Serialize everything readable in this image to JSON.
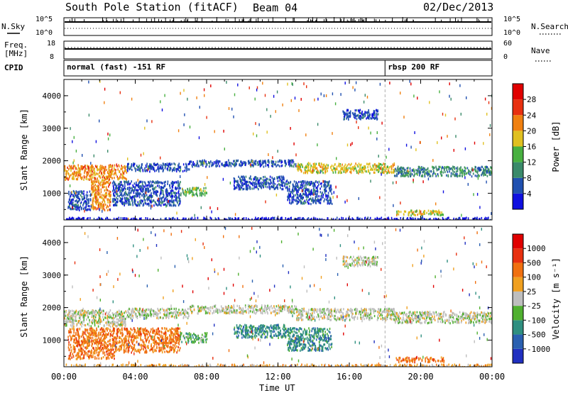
{
  "header": {
    "station": "South Pole Station (fitACF)",
    "beam": "Beam 04",
    "date": "02/Dec/2013"
  },
  "sky_panel": {
    "left_label": "N.Sky",
    "right_label": "N.Search",
    "left_ticks": [
      "10^5",
      "10^0"
    ],
    "right_ticks": [
      "10^5",
      "10^0"
    ]
  },
  "freq_panel": {
    "left_label_line1": "Freq.",
    "left_label_line2": "[MHz]",
    "right_label": "Nave",
    "left_ticks": [
      "18",
      "8"
    ],
    "right_ticks": [
      "60",
      "0"
    ]
  },
  "cpid_panel": {
    "label": "CPID",
    "modes": [
      {
        "name": "normal (fast) -151 RF",
        "start_hour": 0
      },
      {
        "name": "rbsp 200 RF",
        "start_hour": 18
      }
    ]
  },
  "time_axis": {
    "label": "Time UT",
    "ticks": [
      "00:00",
      "04:00",
      "08:00",
      "12:00",
      "16:00",
      "20:00",
      "00:00"
    ]
  },
  "chart_data": [
    {
      "type": "heatmap",
      "name": "Power",
      "ylabel": "Slant Range [km]",
      "xlabel": "",
      "xlim_hours": [
        0,
        24
      ],
      "ylim_km": [
        180,
        4500
      ],
      "yticks": [
        "1000",
        "2000",
        "3000",
        "4000"
      ],
      "colorbar": {
        "label": "Power [dB]",
        "ticks": [
          "4",
          "8",
          "12",
          "16",
          "20",
          "24",
          "28"
        ],
        "colors": [
          "#1010e0",
          "#2050b0",
          "#3a8a6a",
          "#48b040",
          "#e0c020",
          "#f08010",
          "#e83010",
          "#e00000"
        ]
      },
      "bands": [
        {
          "t0": 0.0,
          "t1": 3.5,
          "r0": 1450,
          "r1": 1900,
          "level": 5
        },
        {
          "t0": 3.5,
          "t1": 7.0,
          "r0": 1700,
          "r1": 1950,
          "level": 1
        },
        {
          "t0": 7.0,
          "t1": 13.0,
          "r0": 1850,
          "r1": 2050,
          "level": 1
        },
        {
          "t0": 13.0,
          "t1": 18.5,
          "r0": 1650,
          "r1": 1950,
          "level": 4
        },
        {
          "t0": 18.5,
          "t1": 24.0,
          "r0": 1550,
          "r1": 1850,
          "level": 2
        },
        {
          "t0": 1.5,
          "t1": 2.6,
          "r0": 500,
          "r1": 1450,
          "level": 5
        },
        {
          "t0": 0.2,
          "t1": 1.5,
          "r0": 500,
          "r1": 1100,
          "level": 1
        },
        {
          "t0": 2.7,
          "t1": 6.5,
          "r0": 650,
          "r1": 1400,
          "level": 1
        },
        {
          "t0": 6.5,
          "t1": 8.0,
          "r0": 950,
          "r1": 1200,
          "level": 3
        },
        {
          "t0": 9.5,
          "t1": 12.5,
          "r0": 1150,
          "r1": 1550,
          "level": 1
        },
        {
          "t0": 12.5,
          "t1": 15.0,
          "r0": 700,
          "r1": 1400,
          "level": 1
        },
        {
          "t0": 18.6,
          "t1": 21.3,
          "r0": 350,
          "r1": 500,
          "level": 4
        },
        {
          "t0": 15.6,
          "t1": 17.6,
          "r0": 3300,
          "r1": 3600,
          "level": 1
        },
        {
          "t0": 0.1,
          "t1": 24.0,
          "r0": 200,
          "r1": 280,
          "level": 0
        }
      ]
    },
    {
      "type": "heatmap",
      "name": "Velocity",
      "ylabel": "Slant Range [km]",
      "xlabel": "Time UT",
      "xlim_hours": [
        0,
        24
      ],
      "ylim_km": [
        180,
        4500
      ],
      "yticks": [
        "1000",
        "2000",
        "3000",
        "4000"
      ],
      "colorbar": {
        "label": "Velocity [m s⁻¹]",
        "ticks": [
          "1000",
          "500",
          "100",
          "25",
          "-25",
          "-100",
          "-500",
          "-1000"
        ],
        "colors": [
          "#2030c0",
          "#2a60b0",
          "#2f8f80",
          "#50b030",
          "#bebebe",
          "#f0a020",
          "#f07010",
          "#e83010",
          "#e00000"
        ]
      },
      "bands": [
        {
          "t0": 0.0,
          "t1": 3.5,
          "r0": 1450,
          "r1": 1950,
          "level": 4
        },
        {
          "t0": 3.5,
          "t1": 7.0,
          "r0": 1700,
          "r1": 2000,
          "level": 4
        },
        {
          "t0": 7.0,
          "t1": 13.0,
          "r0": 1850,
          "r1": 2100,
          "level": 4
        },
        {
          "t0": 13.0,
          "t1": 18.5,
          "r0": 1650,
          "r1": 2000,
          "level": 4
        },
        {
          "t0": 18.5,
          "t1": 24.0,
          "r0": 1550,
          "r1": 1900,
          "level": 4
        },
        {
          "t0": 0.2,
          "t1": 2.8,
          "r0": 450,
          "r1": 1400,
          "level": 6
        },
        {
          "t0": 2.8,
          "t1": 6.5,
          "r0": 650,
          "r1": 1400,
          "level": 6
        },
        {
          "t0": 6.5,
          "t1": 8.0,
          "r0": 950,
          "r1": 1250,
          "level": 3
        },
        {
          "t0": 9.5,
          "t1": 12.5,
          "r0": 1100,
          "r1": 1500,
          "level": 2
        },
        {
          "t0": 12.5,
          "t1": 15.0,
          "r0": 700,
          "r1": 1400,
          "level": 2
        },
        {
          "t0": 18.6,
          "t1": 21.3,
          "r0": 350,
          "r1": 500,
          "level": 6
        },
        {
          "t0": 15.6,
          "t1": 17.6,
          "r0": 3300,
          "r1": 3600,
          "level": 4
        },
        {
          "t0": 0.1,
          "t1": 24.0,
          "r0": 200,
          "r1": 280,
          "level": 5
        }
      ]
    }
  ]
}
